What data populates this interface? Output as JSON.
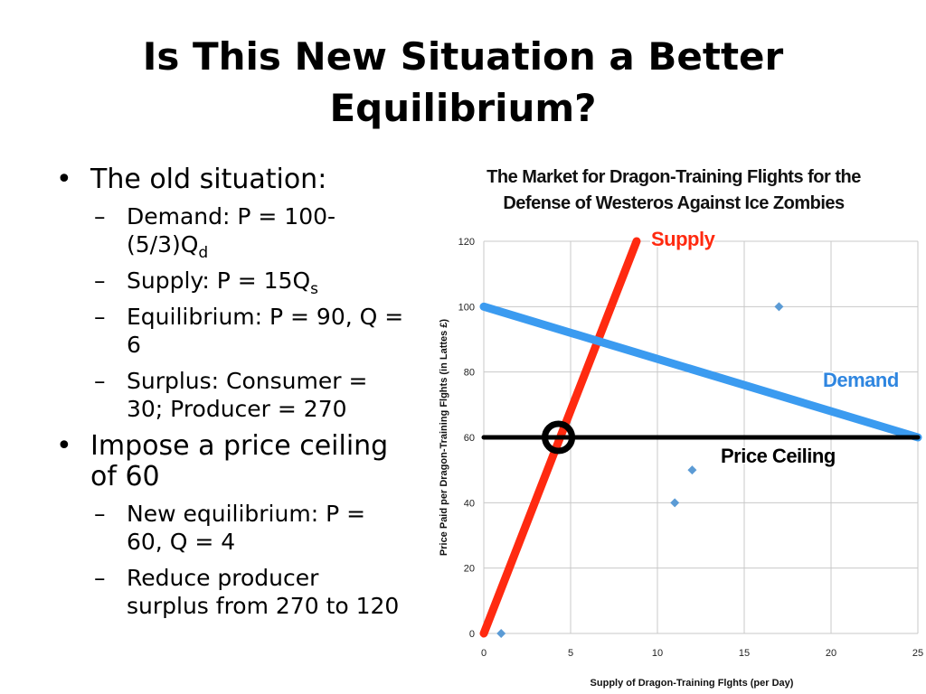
{
  "slide": {
    "title_line1": "Is This New Situation a Better",
    "title_line2": "Equilibrium?"
  },
  "bullets": [
    {
      "text": "The old situation:",
      "subs": [
        {
          "text": "Demand: P = 100-(5/3)Q",
          "subscript": "d"
        },
        {
          "text": "Supply: P = 15Q",
          "subscript": "s"
        },
        {
          "text": "Equilibrium: P = 90, Q = 6"
        },
        {
          "text": "Surplus: Consumer = 30; Producer = 270"
        }
      ]
    },
    {
      "text": "Impose a price ceiling of 60",
      "subs": [
        {
          "text": "New equilibrium: P = 60, Q = 4"
        },
        {
          "text": "Reduce producer surplus from 270 to 120"
        }
      ]
    }
  ],
  "chart_data": {
    "type": "line",
    "title_line1": "The Market for Dragon-Training Flights for the",
    "title_line2": "Defense of Westeros Against Ice Zombies",
    "xlabel": "Supply of Dragon-Training Flghts (per Day)",
    "ylabel": "Price Paid per Dragon-Training Flghts (in Lattes £)",
    "xlim": [
      0,
      25
    ],
    "ylim": [
      0,
      120
    ],
    "x_ticks": [
      0,
      5,
      10,
      15,
      20,
      25
    ],
    "y_ticks": [
      0,
      20,
      40,
      60,
      80,
      100,
      120
    ],
    "grid": true,
    "series": [
      {
        "name": "Supply",
        "color": "#ff2a10",
        "points": [
          [
            0,
            0
          ],
          [
            8.8,
            120
          ]
        ]
      },
      {
        "name": "Demand",
        "color": "#3b9bf0",
        "points": [
          [
            0,
            100
          ],
          [
            25,
            60
          ]
        ]
      },
      {
        "name": "Price Ceiling",
        "color": "#000000",
        "points": [
          [
            0,
            60
          ],
          [
            25,
            60
          ]
        ]
      }
    ],
    "scatter_points": [
      [
        1,
        0
      ],
      [
        11,
        40
      ],
      [
        12,
        50
      ],
      [
        17,
        100
      ]
    ],
    "scatter_color": "#5b9bd5",
    "highlight_point": [
      4.3,
      60
    ]
  }
}
